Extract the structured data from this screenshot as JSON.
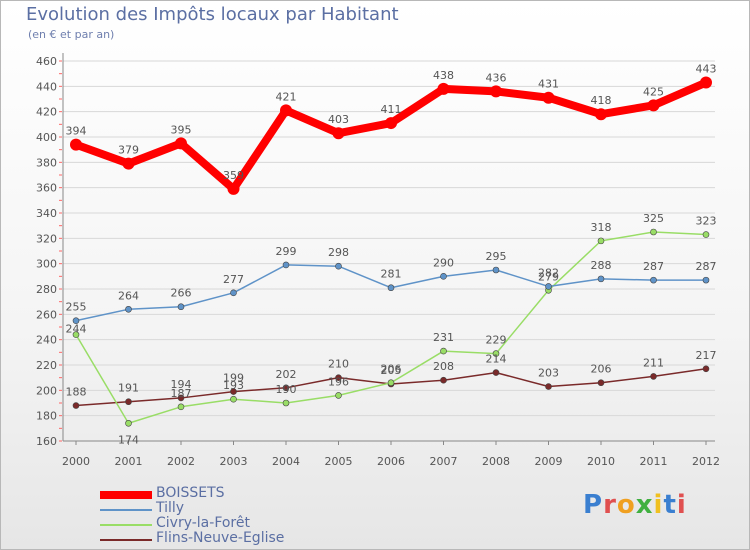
{
  "title": "Evolution des Impôts locaux par Habitant",
  "subtitle": "(en € et par an)",
  "logo": "Proxiti",
  "colors": {
    "BOISSETS": "#ff0000",
    "Tilly": "#5f93c8",
    "Civry": "#99dd66",
    "Flins": "#7a2a2a",
    "axis": "#888888",
    "grid": "#d8d8d8",
    "text": "#555555"
  },
  "chart_data": {
    "type": "line",
    "title": "Evolution des Impôts locaux par Habitant",
    "subtitle": "(en € et par an)",
    "xlabel": "",
    "ylabel": "",
    "x": [
      "2000",
      "2001",
      "2002",
      "2003",
      "2004",
      "2005",
      "2006",
      "2007",
      "2008",
      "2009",
      "2010",
      "2011",
      "2012"
    ],
    "ylim": [
      160,
      460
    ],
    "yticks": [
      160,
      180,
      200,
      220,
      240,
      260,
      280,
      300,
      320,
      340,
      360,
      380,
      400,
      420,
      440,
      460
    ],
    "grid": "horizontal",
    "legend": "bottom-left",
    "series": [
      {
        "name": "BOISSETS",
        "values": [
          394,
          379,
          395,
          359,
          421,
          403,
          411,
          438,
          436,
          431,
          418,
          425,
          443
        ],
        "labels": [
          "394",
          "379",
          "395",
          "359",
          "421",
          "403",
          "411",
          "438",
          "436",
          "431",
          "418",
          "425",
          "443"
        ]
      },
      {
        "name": "Tilly",
        "values": [
          255,
          264,
          266,
          277,
          299,
          298,
          281,
          290,
          295,
          282,
          288,
          287,
          287
        ],
        "labels": [
          "255",
          "264",
          "266",
          "277",
          "299",
          "298",
          "281",
          "290",
          "295",
          "282",
          "288",
          "287",
          "287"
        ]
      },
      {
        "name": "Civry-la-Forêt",
        "values": [
          244,
          174,
          187,
          193,
          190,
          196,
          206,
          231,
          229,
          279,
          318,
          325,
          323
        ],
        "labels": [
          "244",
          "174",
          "187",
          "193",
          "190",
          "196",
          "206",
          "231",
          "229",
          "279",
          "318",
          "325",
          "323"
        ]
      },
      {
        "name": "Flins-Neuve-Eglise",
        "values": [
          188,
          191,
          194,
          199,
          202,
          210,
          205,
          208,
          214,
          203,
          206,
          211,
          217
        ],
        "labels": [
          "188",
          "191",
          "194",
          "199",
          "202",
          "210",
          "205",
          "208",
          "214",
          "203",
          "206",
          "211",
          "217"
        ]
      }
    ]
  }
}
